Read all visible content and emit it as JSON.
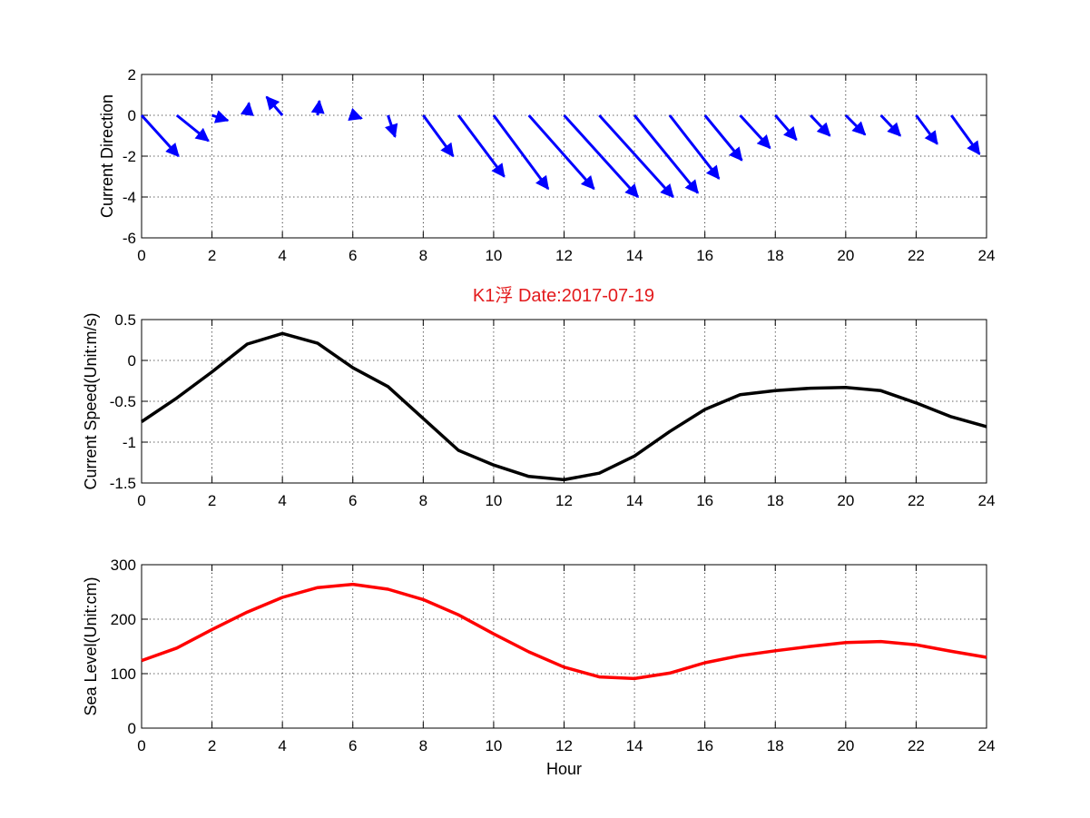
{
  "figure": {
    "title": "K1浮    Date:2017-07-19",
    "title_color": "#e31a1c"
  },
  "chart_data": [
    {
      "type": "quiver",
      "ylabel": "Current Direction",
      "xlabel": "",
      "xlim": [
        0,
        24
      ],
      "ylim": [
        -6,
        2
      ],
      "xticks": [
        0,
        2,
        4,
        6,
        8,
        10,
        12,
        14,
        16,
        18,
        20,
        22,
        24
      ],
      "yticks": [
        -6,
        -4,
        -2,
        0,
        2
      ],
      "grid": true,
      "color": "#0000ff",
      "x": [
        0,
        1,
        2,
        3,
        4,
        5,
        6,
        7,
        8,
        9,
        10,
        11,
        12,
        13,
        14,
        15,
        16,
        17,
        18,
        19,
        20,
        21,
        22,
        23
      ],
      "y": [
        0,
        0,
        0,
        0,
        0,
        0,
        0,
        0,
        0,
        0,
        0,
        0,
        0,
        0,
        0,
        0,
        0,
        0,
        0,
        0,
        0,
        0,
        0,
        0
      ],
      "u": [
        1.05,
        0.9,
        0.45,
        0.05,
        -0.45,
        0.05,
        0.25,
        0.2,
        0.85,
        1.3,
        1.55,
        1.85,
        2.1,
        2.1,
        1.8,
        1.4,
        1.05,
        0.85,
        0.6,
        0.55,
        0.55,
        0.55,
        0.6,
        0.8
      ],
      "v": [
        -2.0,
        -1.25,
        -0.25,
        0.6,
        0.9,
        0.7,
        -0.15,
        -1.05,
        -2.0,
        -3.0,
        -3.6,
        -3.6,
        -4.0,
        -4.0,
        -3.8,
        -3.1,
        -2.2,
        -1.6,
        -1.2,
        -1.0,
        -0.95,
        -1.0,
        -1.4,
        -1.9
      ]
    },
    {
      "type": "line",
      "ylabel": "Current Speed(Unit:m/s)",
      "xlabel": "",
      "xlim": [
        0,
        24
      ],
      "ylim": [
        -1.5,
        0.5
      ],
      "xticks": [
        0,
        2,
        4,
        6,
        8,
        10,
        12,
        14,
        16,
        18,
        20,
        22,
        24
      ],
      "yticks": [
        -1.5,
        -1,
        -0.5,
        0,
        0.5
      ],
      "ytick_labels": [
        "-1.5",
        "-1",
        "-0.5",
        "0",
        "0.5"
      ],
      "grid": true,
      "color": "#000000",
      "x": [
        0,
        1,
        2,
        3,
        4,
        5,
        6,
        7,
        8,
        9,
        10,
        11,
        12,
        13,
        14,
        15,
        16,
        17,
        18,
        19,
        20,
        21,
        22,
        23,
        24
      ],
      "y": [
        -0.75,
        -0.46,
        -0.14,
        0.2,
        0.33,
        0.21,
        -0.09,
        -0.32,
        -0.71,
        -1.1,
        -1.28,
        -1.42,
        -1.46,
        -1.38,
        -1.17,
        -0.87,
        -0.6,
        -0.42,
        -0.37,
        -0.34,
        -0.33,
        -0.37,
        -0.52,
        -0.69,
        -0.81
      ]
    },
    {
      "type": "line",
      "ylabel": "Sea Level(Unit:cm)",
      "xlabel": "Hour",
      "xlim": [
        0,
        24
      ],
      "ylim": [
        0,
        300
      ],
      "xticks": [
        0,
        2,
        4,
        6,
        8,
        10,
        12,
        14,
        16,
        18,
        20,
        22,
        24
      ],
      "yticks": [
        0,
        100,
        200,
        300
      ],
      "grid": true,
      "color": "#ff0000",
      "x": [
        0,
        1,
        2,
        3,
        4,
        5,
        6,
        7,
        8,
        9,
        10,
        11,
        12,
        13,
        14,
        15,
        16,
        17,
        18,
        19,
        20,
        21,
        22,
        23,
        24
      ],
      "y": [
        124,
        147,
        181,
        213,
        240,
        258,
        264,
        255,
        236,
        208,
        173,
        140,
        112,
        94,
        91,
        101,
        120,
        133,
        142,
        150,
        157,
        159,
        153,
        141,
        130
      ]
    }
  ]
}
